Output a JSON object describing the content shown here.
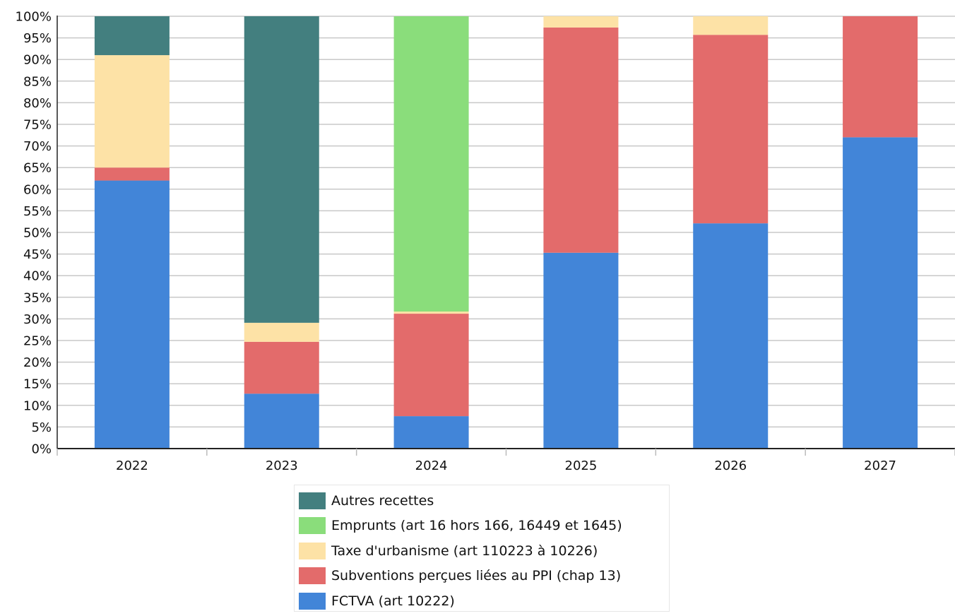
{
  "chart_data": {
    "type": "bar",
    "stacked": true,
    "normalized": true,
    "categories": [
      "2022",
      "2023",
      "2024",
      "2025",
      "2026",
      "2027"
    ],
    "y_tick_labels": [
      "0%",
      "5%",
      "10%",
      "15%",
      "20%",
      "25%",
      "30%",
      "35%",
      "40%",
      "45%",
      "50%",
      "55%",
      "60%",
      "65%",
      "70%",
      "75%",
      "80%",
      "85%",
      "90%",
      "95%",
      "100%"
    ],
    "ylim": [
      0,
      100
    ],
    "grid": true,
    "legend_position": "bottom",
    "series": [
      {
        "name": "FCTVA (art 10222)",
        "color": "#4285d8",
        "values": [
          62.0,
          12.7,
          7.5,
          45.3,
          52.1,
          72.0
        ]
      },
      {
        "name": "Subventions perçues liées au PPI (chap 13)",
        "color": "#e36b6b",
        "values": [
          3.0,
          12.0,
          23.7,
          52.1,
          43.6,
          28.0
        ]
      },
      {
        "name": "Taxe d'urbanisme (art 110223 à 10226)",
        "color": "#fde2a6",
        "values": [
          26.0,
          4.4,
          0.5,
          2.6,
          4.3,
          0.0
        ]
      },
      {
        "name": "Emprunts (art 16 hors 166, 16449 et 1645)",
        "color": "#8add7b",
        "values": [
          0.0,
          0.0,
          68.3,
          0.0,
          0.0,
          0.0
        ]
      },
      {
        "name": "Autres recettes",
        "color": "#437f7f",
        "values": [
          9.0,
          70.9,
          0.0,
          0.0,
          0.0,
          0.0
        ]
      }
    ],
    "legend_order": [
      4,
      3,
      2,
      1,
      0
    ]
  }
}
